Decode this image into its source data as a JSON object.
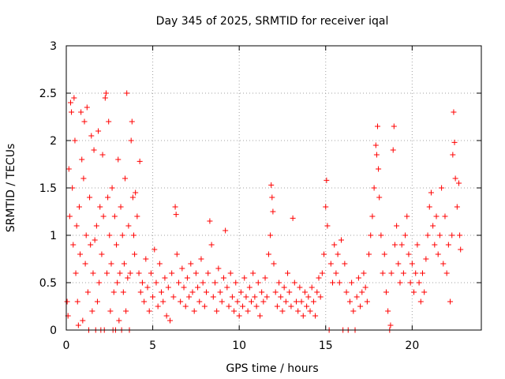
{
  "chart_data": {
    "type": "scatter",
    "title": "Day 345 of 2025, SRMTID for receiver iqal",
    "xlabel": "GPS time / hours",
    "ylabel": "SRMTID / TECUs",
    "xlim": [
      0,
      24
    ],
    "ylim": [
      0,
      3
    ],
    "xticks": [
      0,
      5,
      10,
      15,
      20
    ],
    "xtick_labels": [
      "0",
      "5",
      "10",
      "15",
      "20"
    ],
    "yticks": [
      0,
      0.5,
      1,
      1.5,
      2,
      2.5,
      3
    ],
    "ytick_labels": [
      "0",
      "0.5",
      "1",
      "1.5",
      "2",
      "2.5",
      "3"
    ],
    "grid": true,
    "marker": "+",
    "color": "#ff0000",
    "series": [
      {
        "name": "SRMTID",
        "points": [
          [
            0.05,
            0.3
          ],
          [
            0.1,
            0.15
          ],
          [
            0.15,
            1.7
          ],
          [
            0.2,
            1.2
          ],
          [
            0.25,
            2.4
          ],
          [
            0.3,
            2.3
          ],
          [
            0.35,
            1.5
          ],
          [
            0.4,
            0.9
          ],
          [
            0.45,
            2.45
          ],
          [
            0.5,
            2.0
          ],
          [
            0.55,
            0.6
          ],
          [
            0.6,
            1.1
          ],
          [
            0.65,
            0.3
          ],
          [
            0.7,
            0.05
          ],
          [
            0.75,
            1.3
          ],
          [
            0.8,
            0.8
          ],
          [
            0.85,
            2.3
          ],
          [
            0.9,
            1.8
          ],
          [
            0.95,
            0.1
          ],
          [
            1.0,
            1.6
          ],
          [
            1.05,
            2.2
          ],
          [
            1.1,
            0.7
          ],
          [
            1.15,
            1.0
          ],
          [
            1.2,
            2.35
          ],
          [
            1.25,
            0.4
          ],
          [
            1.3,
            0.0
          ],
          [
            1.35,
            1.4
          ],
          [
            1.4,
            0.9
          ],
          [
            1.45,
            2.05
          ],
          [
            1.5,
            0.2
          ],
          [
            1.55,
            0.6
          ],
          [
            1.6,
            1.9
          ],
          [
            1.65,
            0.95
          ],
          [
            1.7,
            0.0
          ],
          [
            1.75,
            1.1
          ],
          [
            1.8,
            0.3
          ],
          [
            1.85,
            2.1
          ],
          [
            1.9,
            0.5
          ],
          [
            1.95,
            1.3
          ],
          [
            2.0,
            0.0
          ],
          [
            2.05,
            0.8
          ],
          [
            2.1,
            1.85
          ],
          [
            2.15,
            1.2
          ],
          [
            2.2,
            0.0
          ],
          [
            2.25,
            2.45
          ],
          [
            2.3,
            2.5
          ],
          [
            2.35,
            0.6
          ],
          [
            2.4,
            1.4
          ],
          [
            2.45,
            2.2
          ],
          [
            2.5,
            1.0
          ],
          [
            2.55,
            0.2
          ],
          [
            2.6,
            0.7
          ],
          [
            2.65,
            1.5
          ],
          [
            2.7,
            0.0
          ],
          [
            2.75,
            0.4
          ],
          [
            2.8,
            1.2
          ],
          [
            2.85,
            0.0
          ],
          [
            2.9,
            0.9
          ],
          [
            2.95,
            0.5
          ],
          [
            3.0,
            1.8
          ],
          [
            3.05,
            0.1
          ],
          [
            3.1,
            0.6
          ],
          [
            3.15,
            1.3
          ],
          [
            3.2,
            0.0
          ],
          [
            3.25,
            1.0
          ],
          [
            3.3,
            0.4
          ],
          [
            3.35,
            0.7
          ],
          [
            3.4,
            1.6
          ],
          [
            3.45,
            0.2
          ],
          [
            3.5,
            2.5
          ],
          [
            3.55,
            0.55
          ],
          [
            3.6,
            1.1
          ],
          [
            3.65,
            0.0
          ],
          [
            3.7,
            0.6
          ],
          [
            3.75,
            2.0
          ],
          [
            3.8,
            2.2
          ],
          [
            3.85,
            1.4
          ],
          [
            3.9,
            1.0
          ],
          [
            3.95,
            0.8
          ],
          [
            4.0,
            1.45
          ],
          [
            4.1,
            1.2
          ],
          [
            4.2,
            0.6
          ],
          [
            4.25,
            1.78
          ],
          [
            4.3,
            0.4
          ],
          [
            4.4,
            0.5
          ],
          [
            4.5,
            0.3
          ],
          [
            4.6,
            0.75
          ],
          [
            4.7,
            0.45
          ],
          [
            4.8,
            0.2
          ],
          [
            4.9,
            0.6
          ],
          [
            5.0,
            0.35
          ],
          [
            5.1,
            0.85
          ],
          [
            5.2,
            0.5
          ],
          [
            5.3,
            0.25
          ],
          [
            5.4,
            0.7
          ],
          [
            5.5,
            0.4
          ],
          [
            5.6,
            0.3
          ],
          [
            5.7,
            0.55
          ],
          [
            5.8,
            0.15
          ],
          [
            5.9,
            0.45
          ],
          [
            6.0,
            0.1
          ],
          [
            6.1,
            0.6
          ],
          [
            6.2,
            0.35
          ],
          [
            6.3,
            1.3
          ],
          [
            6.35,
            1.22
          ],
          [
            6.4,
            0.8
          ],
          [
            6.5,
            0.5
          ],
          [
            6.6,
            0.3
          ],
          [
            6.7,
            0.65
          ],
          [
            6.8,
            0.45
          ],
          [
            6.9,
            0.25
          ],
          [
            7.0,
            0.55
          ],
          [
            7.1,
            0.35
          ],
          [
            7.2,
            0.7
          ],
          [
            7.3,
            0.4
          ],
          [
            7.4,
            0.2
          ],
          [
            7.5,
            0.6
          ],
          [
            7.6,
            0.45
          ],
          [
            7.7,
            0.3
          ],
          [
            7.8,
            0.75
          ],
          [
            7.9,
            0.5
          ],
          [
            8.0,
            0.25
          ],
          [
            8.1,
            0.4
          ],
          [
            8.2,
            0.6
          ],
          [
            8.3,
            1.15
          ],
          [
            8.4,
            0.9
          ],
          [
            8.5,
            0.35
          ],
          [
            8.6,
            0.5
          ],
          [
            8.7,
            0.2
          ],
          [
            8.8,
            0.65
          ],
          [
            8.9,
            0.4
          ],
          [
            9.0,
            0.3
          ],
          [
            9.1,
            0.55
          ],
          [
            9.2,
            1.05
          ],
          [
            9.3,
            0.45
          ],
          [
            9.4,
            0.25
          ],
          [
            9.5,
            0.6
          ],
          [
            9.6,
            0.35
          ],
          [
            9.7,
            0.2
          ],
          [
            9.8,
            0.5
          ],
          [
            9.9,
            0.3
          ],
          [
            10.0,
            0.15
          ],
          [
            10.1,
            0.4
          ],
          [
            10.2,
            0.25
          ],
          [
            10.3,
            0.55
          ],
          [
            10.4,
            0.35
          ],
          [
            10.5,
            0.2
          ],
          [
            10.6,
            0.45
          ],
          [
            10.7,
            0.3
          ],
          [
            10.8,
            0.6
          ],
          [
            10.9,
            0.35
          ],
          [
            11.0,
            0.25
          ],
          [
            11.1,
            0.5
          ],
          [
            11.2,
            0.15
          ],
          [
            11.3,
            0.4
          ],
          [
            11.4,
            0.3
          ],
          [
            11.5,
            0.55
          ],
          [
            11.6,
            0.35
          ],
          [
            11.7,
            0.8
          ],
          [
            11.8,
            1.0
          ],
          [
            11.85,
            1.53
          ],
          [
            11.9,
            1.4
          ],
          [
            11.95,
            1.25
          ],
          [
            12.0,
            0.7
          ],
          [
            12.1,
            0.4
          ],
          [
            12.2,
            0.25
          ],
          [
            12.3,
            0.5
          ],
          [
            12.4,
            0.35
          ],
          [
            12.5,
            0.2
          ],
          [
            12.6,
            0.45
          ],
          [
            12.7,
            0.3
          ],
          [
            12.8,
            0.6
          ],
          [
            12.9,
            0.4
          ],
          [
            13.0,
            0.25
          ],
          [
            13.1,
            1.18
          ],
          [
            13.2,
            0.5
          ],
          [
            13.3,
            0.3
          ],
          [
            13.4,
            0.2
          ],
          [
            13.5,
            0.45
          ],
          [
            13.6,
            0.3
          ],
          [
            13.7,
            0.15
          ],
          [
            13.8,
            0.4
          ],
          [
            13.9,
            0.25
          ],
          [
            14.0,
            0.35
          ],
          [
            14.1,
            0.2
          ],
          [
            14.2,
            0.45
          ],
          [
            14.3,
            0.3
          ],
          [
            14.4,
            0.15
          ],
          [
            14.5,
            0.4
          ],
          [
            14.6,
            0.55
          ],
          [
            14.7,
            0.35
          ],
          [
            14.8,
            0.6
          ],
          [
            14.9,
            0.8
          ],
          [
            15.0,
            1.3
          ],
          [
            15.05,
            1.58
          ],
          [
            15.1,
            1.1
          ],
          [
            15.2,
            0.0
          ],
          [
            15.3,
            0.7
          ],
          [
            15.4,
            0.5
          ],
          [
            15.5,
            0.9
          ],
          [
            15.6,
            0.6
          ],
          [
            15.7,
            0.8
          ],
          [
            15.8,
            0.5
          ],
          [
            15.9,
            0.95
          ],
          [
            16.0,
            0.0
          ],
          [
            16.1,
            0.7
          ],
          [
            16.2,
            0.4
          ],
          [
            16.3,
            0.0
          ],
          [
            16.4,
            0.3
          ],
          [
            16.5,
            0.5
          ],
          [
            16.6,
            0.2
          ],
          [
            16.7,
            0.0
          ],
          [
            16.8,
            0.35
          ],
          [
            16.9,
            0.55
          ],
          [
            17.0,
            0.25
          ],
          [
            17.1,
            0.4
          ],
          [
            17.2,
            0.6
          ],
          [
            17.3,
            0.45
          ],
          [
            17.4,
            0.3
          ],
          [
            17.5,
            0.8
          ],
          [
            17.6,
            1.0
          ],
          [
            17.7,
            1.2
          ],
          [
            17.8,
            1.5
          ],
          [
            17.9,
            1.95
          ],
          [
            17.95,
            1.85
          ],
          [
            18.0,
            2.15
          ],
          [
            18.05,
            1.7
          ],
          [
            18.1,
            1.4
          ],
          [
            18.2,
            1.0
          ],
          [
            18.3,
            0.6
          ],
          [
            18.4,
            0.8
          ],
          [
            18.5,
            0.4
          ],
          [
            18.6,
            0.2
          ],
          [
            18.7,
            0.0
          ],
          [
            18.75,
            0.05
          ],
          [
            18.8,
            0.6
          ],
          [
            18.9,
            1.9
          ],
          [
            18.95,
            2.15
          ],
          [
            19.0,
            0.9
          ],
          [
            19.1,
            1.1
          ],
          [
            19.2,
            0.7
          ],
          [
            19.3,
            0.5
          ],
          [
            19.4,
            0.9
          ],
          [
            19.5,
            0.6
          ],
          [
            19.6,
            1.0
          ],
          [
            19.7,
            1.2
          ],
          [
            19.8,
            0.8
          ],
          [
            19.9,
            0.5
          ],
          [
            20.0,
            0.7
          ],
          [
            20.1,
            0.4
          ],
          [
            20.2,
            0.6
          ],
          [
            20.3,
            0.9
          ],
          [
            20.4,
            0.5
          ],
          [
            20.5,
            0.3
          ],
          [
            20.6,
            0.6
          ],
          [
            20.7,
            0.4
          ],
          [
            20.8,
            0.75
          ],
          [
            20.9,
            1.0
          ],
          [
            21.0,
            1.3
          ],
          [
            21.1,
            1.45
          ],
          [
            21.2,
            1.1
          ],
          [
            21.3,
            0.9
          ],
          [
            21.4,
            1.2
          ],
          [
            21.5,
            0.8
          ],
          [
            21.6,
            1.0
          ],
          [
            21.7,
            1.5
          ],
          [
            21.8,
            0.7
          ],
          [
            21.9,
            1.2
          ],
          [
            22.0,
            0.6
          ],
          [
            22.1,
            0.9
          ],
          [
            22.2,
            0.3
          ],
          [
            22.3,
            1.0
          ],
          [
            22.35,
            1.85
          ],
          [
            22.4,
            2.3
          ],
          [
            22.45,
            1.98
          ],
          [
            22.5,
            1.6
          ],
          [
            22.6,
            1.3
          ],
          [
            22.7,
            1.55
          ],
          [
            22.75,
            1.0
          ],
          [
            22.8,
            0.85
          ]
        ]
      }
    ]
  }
}
